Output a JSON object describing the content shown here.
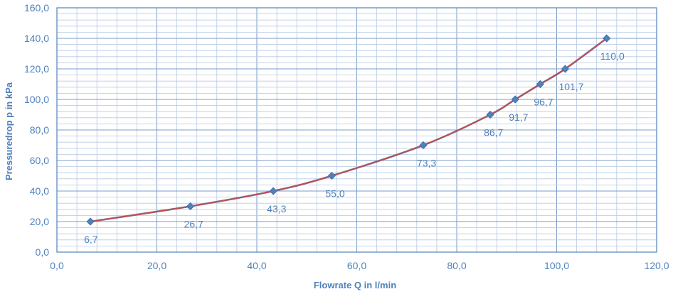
{
  "chart_data": {
    "type": "line",
    "xlabel": "Flowrate Q in l/min",
    "ylabel": "Pressuredrop p in kPa",
    "xlim": [
      0,
      120
    ],
    "ylim": [
      0,
      160
    ],
    "x_major_step": 20,
    "x_minor_step": 4,
    "y_major_step": 20,
    "y_minor_step": 4,
    "x_tick_labels": [
      "0,0",
      "20,0",
      "40,0",
      "60,0",
      "80,0",
      "100,0",
      "120,0"
    ],
    "y_tick_labels": [
      "0,0",
      "20,0",
      "40,0",
      "60,0",
      "80,0",
      "100,0",
      "120,0",
      "140,0",
      "160,0"
    ],
    "grid": true,
    "legend": "none",
    "series": [
      {
        "role": "measured",
        "color": "#4f81bd",
        "marker": "diamond",
        "x": [
          6.7,
          26.7,
          43.3,
          55.0,
          73.3,
          86.7,
          91.7,
          96.7,
          101.7,
          110.0
        ],
        "y": [
          20,
          30,
          40,
          50,
          70,
          90,
          100,
          110,
          120,
          140
        ]
      },
      {
        "role": "trend",
        "color": "#c0504d",
        "x": [
          6.7,
          26.7,
          43.3,
          55.0,
          73.3,
          86.7,
          91.7,
          96.7,
          101.7,
          110.0
        ],
        "y": [
          20,
          30,
          40,
          50,
          70,
          90,
          100,
          110,
          120,
          140
        ]
      }
    ],
    "data_labels": [
      "6,7",
      "26,7",
      "43,3",
      "55,0",
      "73,3",
      "86,7",
      "91,7",
      "96,7",
      "101,7",
      "110,0"
    ]
  }
}
